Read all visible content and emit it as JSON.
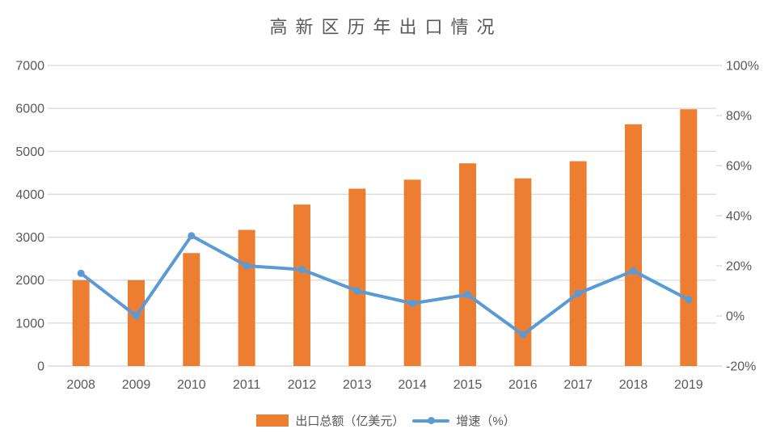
{
  "chart_data": {
    "type": "combo",
    "title": "高新区历年出口情况",
    "categories": [
      "2008",
      "2009",
      "2010",
      "2011",
      "2012",
      "2013",
      "2014",
      "2015",
      "2016",
      "2017",
      "2018",
      "2019"
    ],
    "series": [
      {
        "name": "出口总额（亿美元）",
        "type": "bar",
        "axis": "left",
        "color": "#ED7D31",
        "values": [
          2000,
          2000,
          2630,
          3170,
          3760,
          4130,
          4340,
          4720,
          4370,
          4770,
          5630,
          5980
        ]
      },
      {
        "name": "增速（%）",
        "type": "line",
        "axis": "right",
        "color": "#5B9BD5",
        "values": [
          17,
          0,
          32,
          20,
          18.5,
          10,
          5,
          8.5,
          -7.5,
          9,
          18,
          6.5
        ]
      }
    ],
    "left_axis": {
      "min": 0,
      "max": 7000,
      "step": 1000,
      "tick_labels": [
        "0",
        "1000",
        "2000",
        "3000",
        "4000",
        "5000",
        "6000",
        "7000"
      ]
    },
    "right_axis": {
      "min": -20,
      "max": 100,
      "step": 20,
      "tick_labels": [
        "-20%",
        "0%",
        "20%",
        "40%",
        "60%",
        "80%",
        "100%"
      ]
    },
    "grid": true,
    "legend_position": "bottom",
    "colors": {
      "grid": "#D9D9D9",
      "text": "#595959",
      "background": "#FFFFFF"
    }
  }
}
